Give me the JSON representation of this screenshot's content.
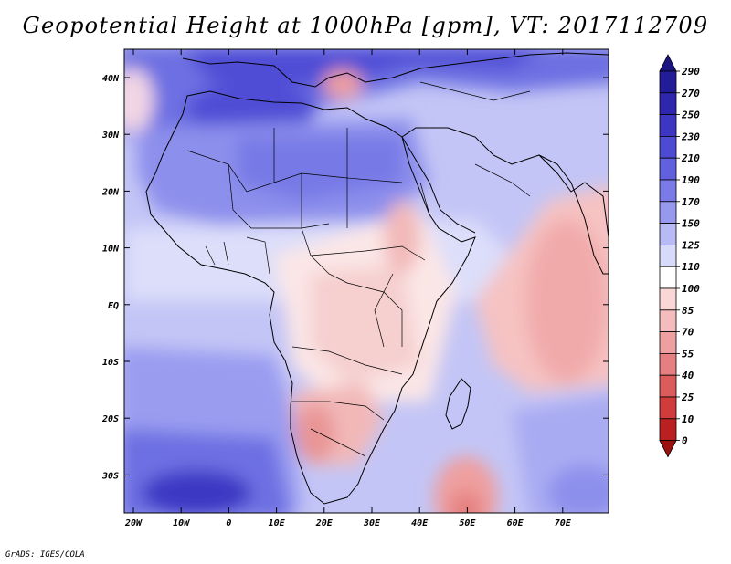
{
  "title": "Geopotential Height at 1000hPa [gpm], VT: 2017112709",
  "credit": "GrADS: IGES/COLA",
  "map": {
    "lat_labels": [
      "40N",
      "30N",
      "20N",
      "10N",
      "EQ",
      "10S",
      "20S",
      "30S"
    ],
    "lon_labels": [
      "20W",
      "10W",
      "0",
      "10E",
      "20E",
      "30E",
      "40E",
      "50E",
      "60E",
      "70E"
    ]
  },
  "colorbar": {
    "levels": [
      "290",
      "270",
      "250",
      "230",
      "210",
      "190",
      "170",
      "150",
      "125",
      "110",
      "100",
      "85",
      "70",
      "55",
      "40",
      "25",
      "10",
      "0"
    ],
    "colors": [
      "#1a1580",
      "#231c98",
      "#2e27ae",
      "#3c36c2",
      "#4d4bd4",
      "#6161df",
      "#7a7be8",
      "#9799ef",
      "#b7baf5",
      "#d8daf9",
      "#ffffff",
      "#f9d7d7",
      "#f4bcbc",
      "#ee9f9f",
      "#e67f7f",
      "#dc5c5c",
      "#d03b3b",
      "#bb2020",
      "#9c1010"
    ]
  }
}
